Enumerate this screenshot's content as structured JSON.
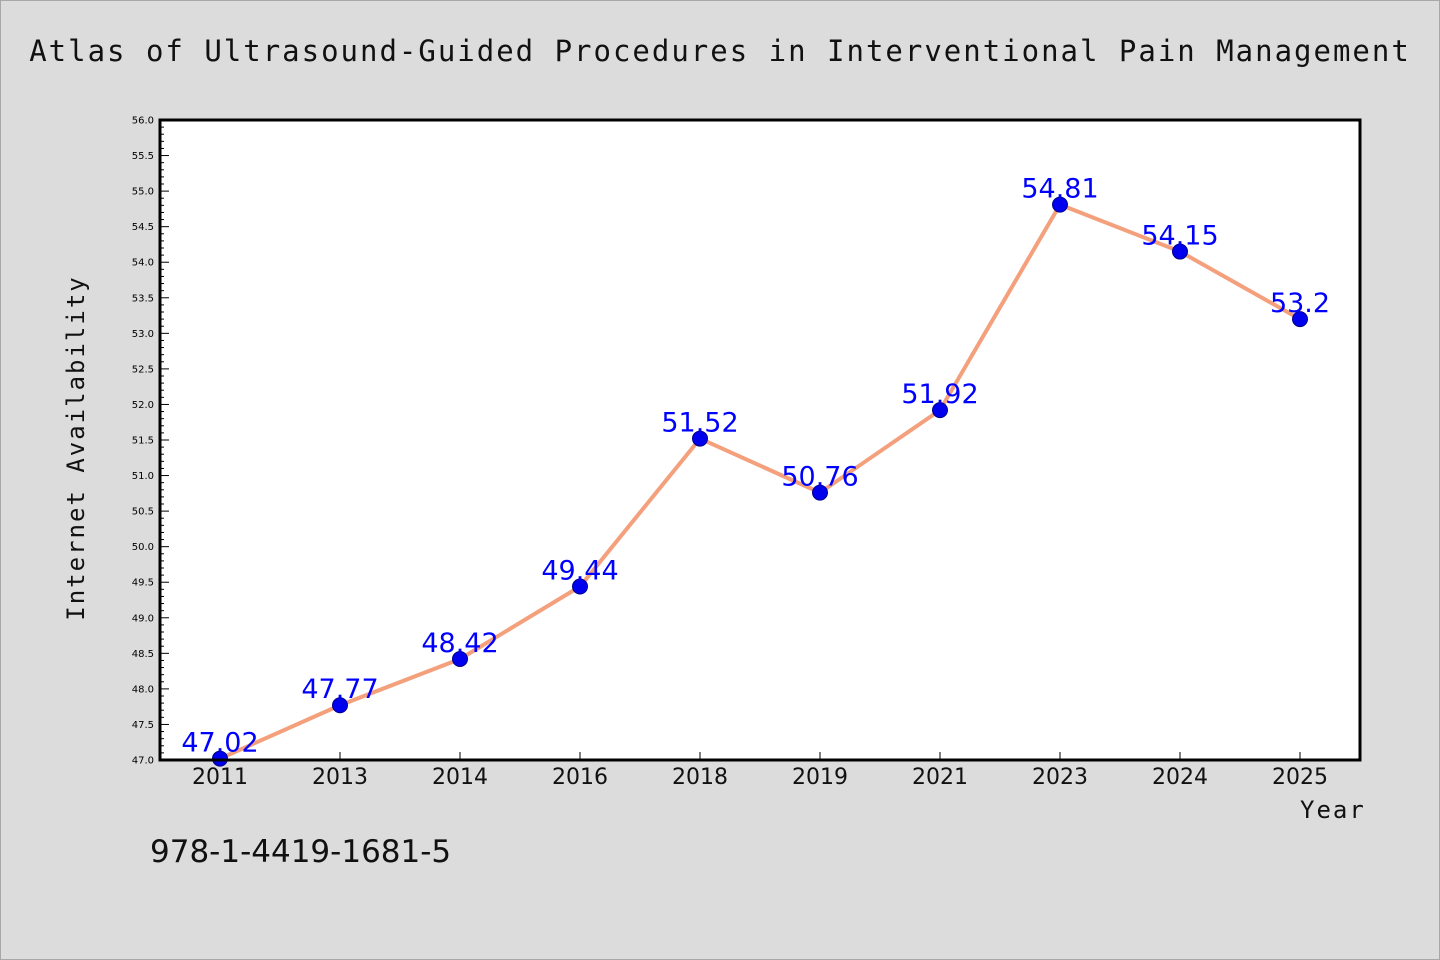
{
  "chart_data": {
    "type": "line",
    "title": "Atlas of Ultrasound-Guided Procedures in Interventional Pain Management",
    "xlabel": "Year",
    "ylabel": "Internet Availability",
    "categories": [
      "2011",
      "2013",
      "2014",
      "2016",
      "2018",
      "2019",
      "2021",
      "2023",
      "2024",
      "2025"
    ],
    "values": [
      47.02,
      47.77,
      48.42,
      49.44,
      51.52,
      50.76,
      51.92,
      54.81,
      54.15,
      53.2
    ],
    "data_labels": [
      "47.02",
      "47.77",
      "48.42",
      "49.44",
      "51.52",
      "50.76",
      "51.92",
      "54.81",
      "54.15",
      "53.2"
    ],
    "ylim": [
      47.0,
      56.0
    ],
    "y_ticks": [
      "47.0",
      "47.5",
      "48.0",
      "48.5",
      "49.0",
      "49.5",
      "50.0",
      "50.5",
      "51.0",
      "51.5",
      "52.0",
      "52.5",
      "53.0",
      "53.5",
      "54.0",
      "54.5",
      "55.0",
      "55.5",
      "56.0"
    ],
    "grid": false,
    "line_color": "#f4a07c",
    "marker_color": "#0000ee",
    "label_color": "#0000ff"
  },
  "footer_text": "978-1-4419-1681-5"
}
